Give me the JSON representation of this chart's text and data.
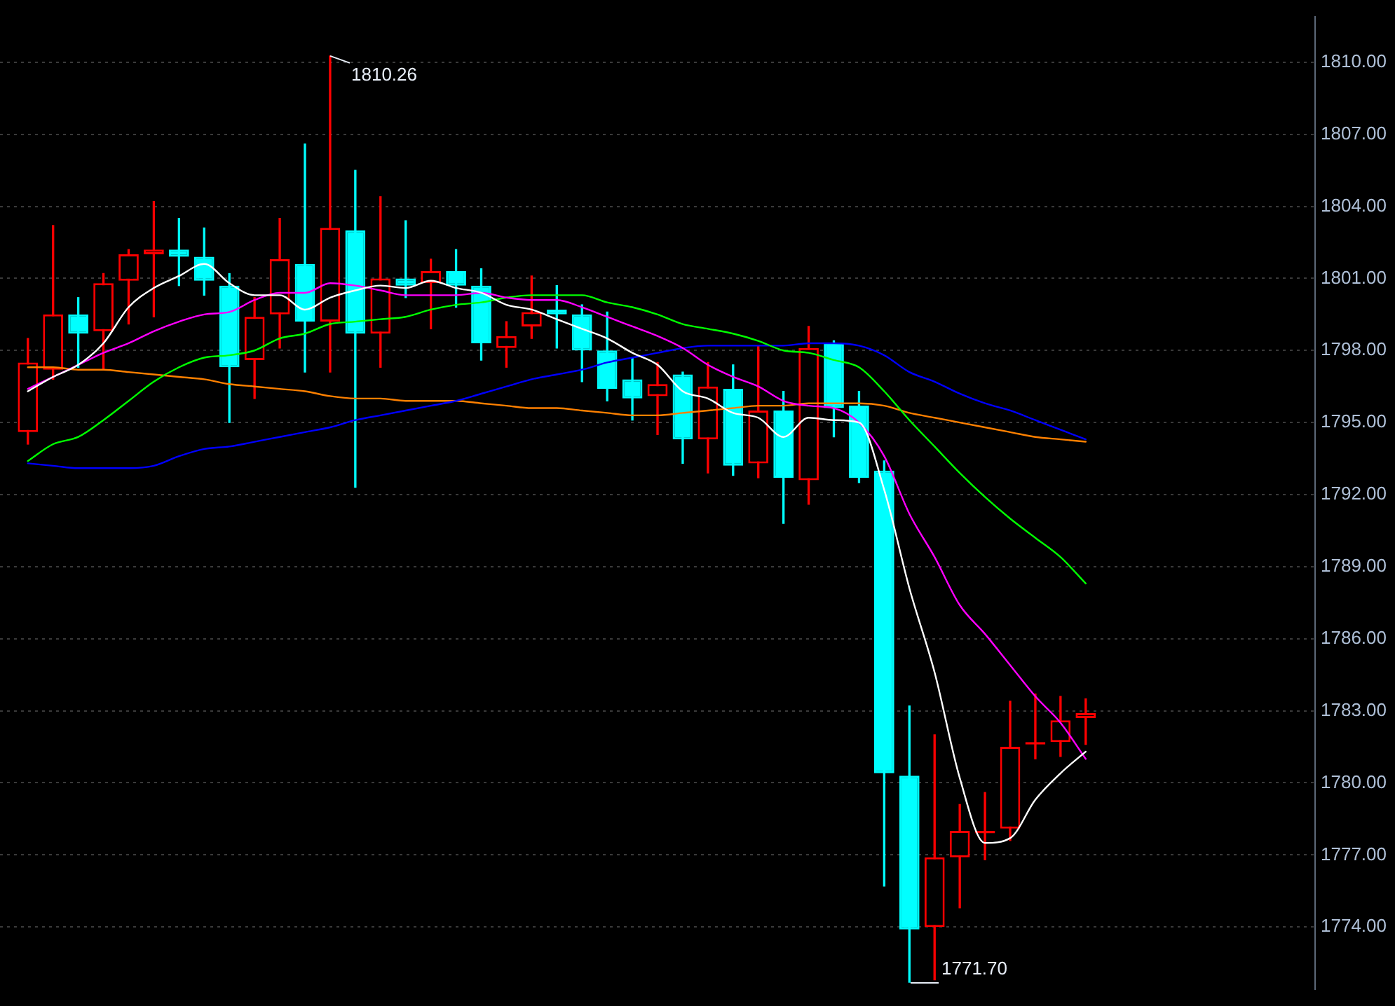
{
  "chart_data": {
    "type": "candlestick",
    "categories": [
      null,
      null,
      null,
      null,
      null,
      null,
      null,
      null,
      null,
      null,
      null,
      null,
      null,
      null,
      null,
      null,
      null,
      null,
      null,
      null,
      null,
      null,
      null,
      null,
      null,
      null,
      null,
      null,
      null,
      null,
      null,
      null,
      null,
      null,
      null,
      null,
      null,
      null,
      null,
      null,
      null,
      null,
      null
    ],
    "ohlc": [
      [
        1794.6,
        1798.5,
        1794.1,
        1797.5
      ],
      [
        1797.2,
        1803.2,
        1796.8,
        1799.5
      ],
      [
        1799.5,
        1800.2,
        1797.3,
        1798.7
      ],
      [
        1798.8,
        1801.2,
        1797.2,
        1800.8
      ],
      [
        1800.9,
        1802.2,
        1799.1,
        1802.0
      ],
      [
        1802.0,
        1804.2,
        1799.4,
        1802.2
      ],
      [
        1802.2,
        1803.5,
        1800.7,
        1801.9
      ],
      [
        1801.9,
        1803.1,
        1800.3,
        1800.9
      ],
      [
        1800.7,
        1801.2,
        1795.0,
        1797.3
      ],
      [
        1797.6,
        1800.2,
        1796.0,
        1799.4
      ],
      [
        1799.5,
        1803.5,
        1798.1,
        1801.8
      ],
      [
        1801.6,
        1806.6,
        1797.1,
        1799.2
      ],
      [
        1799.2,
        1810.26,
        1797.1,
        1803.1
      ],
      [
        1803.0,
        1805.5,
        1792.3,
        1798.7
      ],
      [
        1798.7,
        1804.4,
        1797.3,
        1801.0
      ],
      [
        1801.0,
        1803.4,
        1800.2,
        1800.7
      ],
      [
        1800.8,
        1801.8,
        1798.9,
        1801.3
      ],
      [
        1801.3,
        1802.2,
        1799.8,
        1800.7
      ],
      [
        1800.7,
        1801.4,
        1797.6,
        1798.3
      ],
      [
        1798.1,
        1799.2,
        1797.3,
        1798.6
      ],
      [
        1799.0,
        1801.1,
        1798.5,
        1799.6
      ],
      [
        1799.7,
        1800.7,
        1798.1,
        1799.5
      ],
      [
        1799.5,
        1799.9,
        1796.7,
        1798.0
      ],
      [
        1798.0,
        1799.6,
        1795.9,
        1796.4
      ],
      [
        1796.8,
        1797.7,
        1795.1,
        1796.0
      ],
      [
        1796.1,
        1797.5,
        1794.5,
        1796.6
      ],
      [
        1797.0,
        1797.1,
        1793.3,
        1794.3
      ],
      [
        1794.3,
        1797.5,
        1792.9,
        1796.5
      ],
      [
        1796.4,
        1797.4,
        1792.8,
        1793.2
      ],
      [
        1793.3,
        1798.2,
        1792.7,
        1795.5
      ],
      [
        1795.5,
        1796.3,
        1790.8,
        1792.7
      ],
      [
        1792.6,
        1799.0,
        1791.6,
        1798.1
      ],
      [
        1798.3,
        1798.4,
        1794.4,
        1795.6
      ],
      [
        1795.7,
        1796.3,
        1792.5,
        1792.7
      ],
      [
        1793.0,
        1793.4,
        1775.7,
        1780.4
      ],
      [
        1780.3,
        1783.2,
        1771.7,
        1773.9
      ],
      [
        1774.0,
        1782.0,
        1771.8,
        1776.9
      ],
      [
        1776.9,
        1779.1,
        1774.8,
        1778.0
      ],
      [
        1777.9,
        1779.6,
        1776.8,
        1778.0
      ],
      [
        1778.1,
        1783.4,
        1777.6,
        1781.5
      ],
      [
        1781.6,
        1783.7,
        1781.0,
        1781.7
      ],
      [
        1781.7,
        1783.6,
        1781.1,
        1782.6
      ],
      [
        1782.7,
        1783.5,
        1781.6,
        1782.9
      ]
    ],
    "colors": [
      "#ff0000",
      "#ff0000",
      "#00ffff",
      "#ff0000",
      "#ff0000",
      "#ff0000",
      "#00ffff",
      "#00ffff",
      "#00ffff",
      "#ff0000",
      "#ff0000",
      "#00ffff",
      "#ff0000",
      "#00ffff",
      "#ff0000",
      "#00ffff",
      "#ff0000",
      "#00ffff",
      "#00ffff",
      "#ff0000",
      "#ff0000",
      "#00ffff",
      "#00ffff",
      "#00ffff",
      "#00ffff",
      "#ff0000",
      "#00ffff",
      "#ff0000",
      "#00ffff",
      "#ff0000",
      "#00ffff",
      "#ff0000",
      "#00ffff",
      "#00ffff",
      "#00ffff",
      "#00ffff",
      "#ff0000",
      "#ff0000",
      "#ff0000",
      "#ff0000",
      "#ff0000",
      "#ff0000",
      "#ff0000"
    ],
    "series": [
      {
        "type": "line",
        "color": "#ffffff",
        "values": [
          1796.3,
          1796.9,
          1797.4,
          1798.3,
          1799.8,
          1800.6,
          1801.1,
          1801.6,
          1800.8,
          1800.3,
          1800.3,
          1799.7,
          1800.2,
          1800.5,
          1800.7,
          1800.6,
          1800.9,
          1800.6,
          1800.4,
          1799.9,
          1799.7,
          1799.3,
          1798.9,
          1798.5,
          1797.9,
          1797.4,
          1796.3,
          1796.0,
          1795.4,
          1795.2,
          1794.4,
          1795.2,
          1795.1,
          1795.0,
          1792.2,
          1788.1,
          1784.6,
          1780.2,
          1777.5,
          1777.7,
          1779.3,
          1780.4,
          1781.3
        ]
      },
      {
        "type": "line",
        "color": "#ff00ff",
        "values": [
          1796.4,
          1796.9,
          1797.4,
          1797.9,
          1798.3,
          1798.8,
          1799.2,
          1799.5,
          1799.6,
          1800.1,
          1800.4,
          1800.4,
          1800.8,
          1800.7,
          1800.5,
          1800.3,
          1800.3,
          1800.3,
          1800.4,
          1800.2,
          1800.1,
          1800.1,
          1799.8,
          1799.4,
          1799.0,
          1798.6,
          1798.1,
          1797.4,
          1796.9,
          1796.5,
          1795.9,
          1795.7,
          1795.6,
          1795.0,
          1793.6,
          1791.2,
          1789.4,
          1787.4,
          1786.2,
          1784.9,
          1783.6,
          1782.5,
          1781.0
        ]
      },
      {
        "type": "line",
        "color": "#00ff00",
        "values": [
          1793.4,
          1794.1,
          1794.4,
          1795.1,
          1795.9,
          1796.7,
          1797.3,
          1797.7,
          1797.8,
          1798.0,
          1798.5,
          1798.7,
          1799.1,
          1799.2,
          1799.3,
          1799.4,
          1799.7,
          1799.9,
          1800.0,
          1800.2,
          1800.3,
          1800.3,
          1800.3,
          1800.0,
          1799.8,
          1799.5,
          1799.1,
          1798.9,
          1798.7,
          1798.4,
          1798.0,
          1797.9,
          1797.6,
          1797.3,
          1796.3,
          1795.1,
          1794.0,
          1792.9,
          1791.9,
          1791.0,
          1790.2,
          1789.4,
          1788.3
        ]
      },
      {
        "type": "line",
        "color": "#0000ff",
        "values": [
          1793.3,
          1793.2,
          1793.1,
          1793.1,
          1793.1,
          1793.2,
          1793.6,
          1793.9,
          1794.0,
          1794.2,
          1794.4,
          1794.6,
          1794.8,
          1795.1,
          1795.3,
          1795.5,
          1795.7,
          1795.9,
          1796.2,
          1796.5,
          1796.8,
          1797.0,
          1797.2,
          1797.5,
          1797.7,
          1797.9,
          1798.1,
          1798.2,
          1798.2,
          1798.2,
          1798.2,
          1798.3,
          1798.3,
          1798.2,
          1797.8,
          1797.1,
          1796.7,
          1796.2,
          1795.8,
          1795.5,
          1795.1,
          1794.7,
          1794.3
        ]
      },
      {
        "type": "line",
        "color": "#ff8000",
        "values": [
          1797.3,
          1797.3,
          1797.2,
          1797.2,
          1797.1,
          1797.0,
          1796.9,
          1796.8,
          1796.6,
          1796.5,
          1796.4,
          1796.3,
          1796.1,
          1796.0,
          1796.0,
          1795.9,
          1795.9,
          1795.9,
          1795.8,
          1795.7,
          1795.6,
          1795.6,
          1795.5,
          1795.4,
          1795.3,
          1795.3,
          1795.4,
          1795.5,
          1795.6,
          1795.7,
          1795.7,
          1795.8,
          1795.8,
          1795.8,
          1795.7,
          1795.4,
          1795.2,
          1795.0,
          1794.8,
          1794.6,
          1794.4,
          1794.3,
          1794.2
        ]
      }
    ],
    "ylim": [
      1771.4,
      1811.9
    ],
    "yticks": [
      {
        "value": 1774,
        "label": "1774.00"
      },
      {
        "value": 1777,
        "label": "1777.00"
      },
      {
        "value": 1780,
        "label": "1780.00"
      },
      {
        "value": 1783,
        "label": "1783.00"
      },
      {
        "value": 1786,
        "label": "1786.00"
      },
      {
        "value": 1789,
        "label": "1789.00"
      },
      {
        "value": 1792,
        "label": "1792.00"
      },
      {
        "value": 1795,
        "label": "1795.00"
      },
      {
        "value": 1798,
        "label": "1798.00"
      },
      {
        "value": 1801,
        "label": "1801.00"
      },
      {
        "value": 1804,
        "label": "1804.00"
      },
      {
        "value": 1807,
        "label": "1807.00"
      },
      {
        "value": 1810,
        "label": "1810.00"
      }
    ],
    "annotations": [
      "1810.26",
      "1771.70"
    ],
    "grid": "y",
    "tick_labels": "y",
    "marker": "none"
  }
}
